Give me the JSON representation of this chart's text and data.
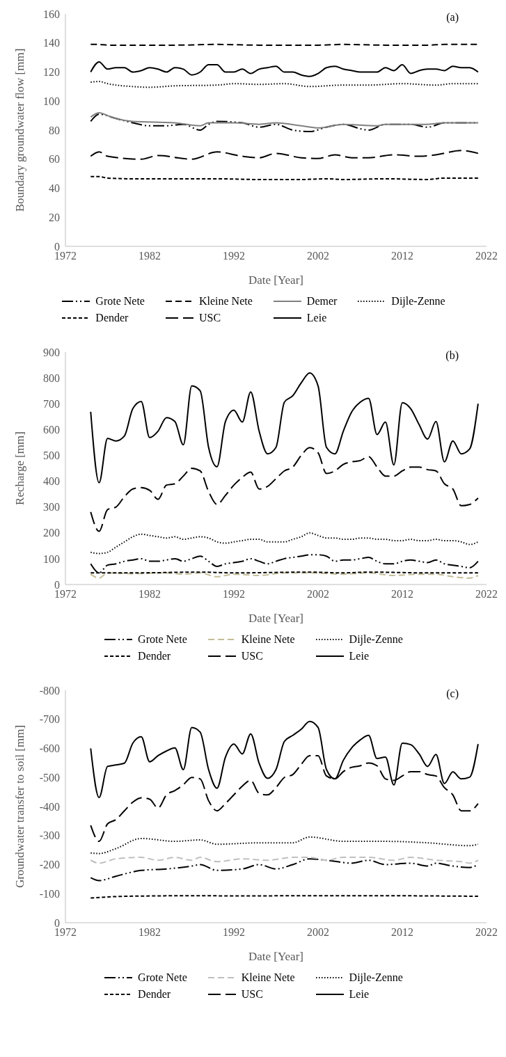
{
  "chart_data": [
    {
      "type": "line",
      "xlabel": "Date [Year]",
      "ylabel": "Boundary groundwater flow [mm]",
      "annotations": [
        "(a)"
      ],
      "legend": "bottom",
      "xlim": [
        1972,
        2022
      ],
      "xticks": [
        1972,
        1982,
        1992,
        2002,
        2012,
        2022
      ],
      "ylim": [
        0,
        160
      ],
      "yticks": [
        0,
        20,
        40,
        60,
        80,
        100,
        120,
        140,
        160
      ],
      "x": [
        1975,
        1976,
        1977,
        1978,
        1979,
        1980,
        1981,
        1982,
        1983,
        1984,
        1985,
        1986,
        1987,
        1988,
        1989,
        1990,
        1991,
        1992,
        1993,
        1994,
        1995,
        1996,
        1997,
        1998,
        1999,
        2000,
        2001,
        2002,
        2003,
        2004,
        2005,
        2006,
        2007,
        2008,
        2009,
        2010,
        2011,
        2012,
        2013,
        2014,
        2015,
        2016,
        2017,
        2018,
        2019,
        2020,
        2021
      ],
      "series": [
        {
          "name": "Grote Nete",
          "color": "#000000",
          "line_style": "dashdot",
          "x": [
            1975,
            1976,
            1978,
            1980,
            1982,
            1984,
            1986,
            1988,
            1989,
            1990,
            1993,
            1995,
            1997,
            1999,
            2001,
            2003,
            2005,
            2007,
            2008,
            2010,
            2013,
            2015,
            2017,
            2021
          ],
          "values": [
            86,
            91,
            88,
            85,
            83,
            83,
            84,
            80,
            84,
            86,
            85,
            82,
            84,
            80,
            79,
            82,
            84,
            81,
            80,
            84,
            84,
            82,
            85,
            85
          ]
        },
        {
          "name": "Kleine Nete",
          "color": "#000000",
          "line_style": "dashed",
          "x": [
            1975,
            1976,
            1977,
            1980,
            1985,
            1990,
            1995,
            2000,
            2002,
            2005,
            2010,
            2015,
            2017,
            2019,
            2021
          ],
          "values": [
            139,
            139,
            138.5,
            138.5,
            138.5,
            139,
            138.5,
            138.5,
            138.5,
            139,
            138.5,
            138.5,
            139,
            139,
            139
          ]
        },
        {
          "name": "Demer",
          "color": "#808080",
          "line_style": "solid",
          "x": [
            1975,
            1976,
            1977,
            1978,
            1980,
            1985,
            1988,
            1989,
            1992,
            1995,
            1997,
            2000,
            2002,
            2005,
            2009,
            2010,
            2015,
            2017,
            2021
          ],
          "values": [
            89,
            92,
            90,
            88,
            86,
            85,
            83,
            85,
            85,
            84,
            85,
            83,
            81.5,
            84,
            83,
            84,
            84,
            85,
            85
          ]
        },
        {
          "name": "Dijle-Zenne",
          "color": "#000000",
          "line_style": "dotted",
          "x": [
            1975,
            1976,
            1977,
            1980,
            1982,
            1985,
            1990,
            1992,
            1995,
            1998,
            2001,
            2005,
            2008,
            2012,
            2016,
            2018,
            2021
          ],
          "values": [
            113,
            113.5,
            112,
            110,
            109.5,
            110.5,
            111,
            112,
            111.5,
            112,
            110,
            111,
            111,
            112,
            111,
            112,
            112
          ]
        },
        {
          "name": "Dender",
          "color": "#000000",
          "line_style": "shortdash",
          "x": [
            1975,
            1976,
            1977,
            1980,
            1985,
            1990,
            1995,
            2000,
            2003,
            2005,
            2010,
            2015,
            2017,
            2021
          ],
          "values": [
            48,
            48,
            47,
            46.5,
            46.5,
            46.5,
            46,
            46,
            46.5,
            46,
            46.5,
            46,
            47,
            47
          ]
        },
        {
          "name": "USC",
          "color": "#000000",
          "line_style": "longdash",
          "x": [
            1975,
            1976,
            1977,
            1981,
            1983,
            1987,
            1990,
            1993,
            1995,
            1997,
            2000,
            2002,
            2004,
            2006,
            2008,
            2011,
            2014,
            2016,
            2019,
            2021
          ],
          "values": [
            62,
            65,
            62,
            60,
            62.5,
            60,
            65,
            62,
            61,
            64,
            61,
            60.5,
            63,
            61,
            61,
            63,
            62,
            63,
            66,
            64
          ]
        },
        {
          "name": "Leie",
          "color": "#000000",
          "line_style": "solid",
          "values": [
            120,
            127,
            122,
            123,
            123,
            120,
            121,
            123,
            122,
            120,
            123,
            122,
            118,
            120,
            125,
            125,
            120,
            120,
            122,
            119,
            122,
            123,
            124,
            120,
            120,
            118,
            117,
            119,
            123,
            124,
            122,
            121,
            120,
            120,
            120,
            123,
            121,
            125,
            119,
            121,
            122,
            122,
            121,
            124,
            123,
            123,
            120
          ]
        }
      ]
    },
    {
      "type": "line",
      "xlabel": "Date [Year]",
      "ylabel": "Recharge [mm]",
      "annotations": [
        "(b)"
      ],
      "legend": "bottom",
      "xlim": [
        1972,
        2022
      ],
      "xticks": [
        1972,
        1982,
        1992,
        2002,
        2012,
        2022
      ],
      "ylim": [
        0,
        900
      ],
      "yticks": [
        0,
        100,
        200,
        300,
        400,
        500,
        600,
        700,
        800,
        900
      ],
      "x": [
        1975,
        1976,
        1977,
        1978,
        1979,
        1980,
        1981,
        1982,
        1983,
        1984,
        1985,
        1986,
        1987,
        1988,
        1989,
        1990,
        1991,
        1992,
        1993,
        1994,
        1995,
        1996,
        1997,
        1998,
        1999,
        2000,
        2001,
        2002,
        2003,
        2004,
        2005,
        2006,
        2007,
        2008,
        2009,
        2010,
        2011,
        2012,
        2013,
        2014,
        2015,
        2016,
        2017,
        2018,
        2019,
        2020,
        2021
      ],
      "series": [
        {
          "name": "Grote Nete",
          "color": "#000000",
          "line_style": "dashdot",
          "values": [
            80,
            45,
            75,
            80,
            90,
            95,
            100,
            90,
            90,
            95,
            100,
            90,
            100,
            110,
            90,
            70,
            80,
            85,
            90,
            100,
            90,
            80,
            90,
            100,
            105,
            110,
            115,
            115,
            110,
            90,
            95,
            95,
            100,
            105,
            90,
            80,
            80,
            90,
            95,
            90,
            85,
            95,
            80,
            75,
            70,
            65,
            90
          ]
        },
        {
          "name": "Kleine Nete",
          "color": "#c4bd97",
          "line_style": "dashed",
          "x": [
            1975,
            1976,
            1977,
            1980,
            1984,
            1986,
            1988,
            1990,
            1992,
            1995,
            1998,
            2001,
            2005,
            2008,
            2011,
            2014,
            2016,
            2018,
            2020,
            2021
          ],
          "values": [
            40,
            25,
            45,
            42,
            45,
            40,
            45,
            30,
            40,
            35,
            45,
            45,
            40,
            45,
            35,
            40,
            40,
            30,
            25,
            35
          ]
        },
        {
          "name": "Dijle-Zenne",
          "color": "#000000",
          "line_style": "dotted",
          "values": [
            125,
            120,
            125,
            145,
            165,
            185,
            195,
            190,
            185,
            180,
            185,
            175,
            180,
            185,
            180,
            165,
            160,
            165,
            170,
            175,
            175,
            165,
            165,
            165,
            175,
            185,
            200,
            190,
            180,
            180,
            175,
            175,
            180,
            180,
            175,
            175,
            170,
            170,
            175,
            170,
            170,
            175,
            170,
            170,
            165,
            155,
            165
          ]
        },
        {
          "name": "Dender",
          "color": "#000000",
          "line_style": "shortdash",
          "x": [
            1975,
            1980,
            1988,
            1992,
            2001,
            2005,
            2008,
            2015,
            2021
          ],
          "values": [
            45,
            45,
            48,
            45,
            48,
            45,
            48,
            45,
            45
          ]
        },
        {
          "name": "USC",
          "color": "#000000",
          "line_style": "longdash",
          "values": [
            281,
            206,
            290,
            300,
            340,
            370,
            375,
            365,
            330,
            385,
            390,
            420,
            450,
            440,
            360,
            310,
            345,
            385,
            415,
            435,
            370,
            380,
            410,
            440,
            455,
            500,
            530,
            510,
            430,
            440,
            465,
            475,
            480,
            495,
            455,
            420,
            420,
            440,
            455,
            455,
            445,
            440,
            390,
            370,
            305,
            310,
            335
          ]
        },
        {
          "name": "Leie",
          "color": "#000000",
          "line_style": "solid",
          "values": [
            669,
            394,
            566,
            556,
            575,
            681,
            709,
            569,
            594,
            646,
            631,
            541,
            769,
            750,
            531,
            456,
            631,
            675,
            629,
            746,
            594,
            506,
            531,
            706,
            731,
            781,
            819,
            769,
            531,
            506,
            594,
            669,
            706,
            721,
            581,
            629,
            463,
            704,
            681,
            619,
            563,
            631,
            475,
            556,
            506,
            525,
            700
          ]
        }
      ]
    },
    {
      "type": "line",
      "xlabel": "Date [Year]",
      "ylabel": "Groundwater transfer to soil [mm]",
      "annotations": [
        "(c)"
      ],
      "legend": "bottom",
      "xlim": [
        1972,
        2022
      ],
      "xticks": [
        1972,
        1982,
        1992,
        2002,
        2012,
        2022
      ],
      "ylim": [
        0,
        -800
      ],
      "yticks": [
        0,
        -100,
        -200,
        -300,
        -400,
        -500,
        -600,
        -700,
        -800
      ],
      "x": [
        1975,
        1976,
        1977,
        1978,
        1979,
        1980,
        1981,
        1982,
        1983,
        1984,
        1985,
        1986,
        1987,
        1988,
        1989,
        1990,
        1991,
        1992,
        1993,
        1994,
        1995,
        1996,
        1997,
        1998,
        1999,
        2000,
        2001,
        2002,
        2003,
        2004,
        2005,
        2006,
        2007,
        2008,
        2009,
        2010,
        2011,
        2012,
        2013,
        2014,
        2015,
        2016,
        2017,
        2018,
        2019,
        2020,
        2021
      ],
      "series": [
        {
          "name": "Grote Nete",
          "color": "#000000",
          "line_style": "dashdot",
          "x": [
            1975,
            1976,
            1978,
            1981,
            1984,
            1987,
            1988,
            1990,
            1993,
            1995,
            1997,
            1999,
            2001,
            2003,
            2006,
            2008,
            2010,
            2013,
            2015,
            2016,
            2018,
            2020,
            2021
          ],
          "values": [
            -155,
            -145,
            -160,
            -180,
            -185,
            -195,
            -200,
            -180,
            -185,
            -200,
            -185,
            -200,
            -220,
            -215,
            -205,
            -215,
            -200,
            -205,
            -195,
            -205,
            -195,
            -190,
            -200
          ]
        },
        {
          "name": "Kleine Nete",
          "color": "#bfbfbf",
          "line_style": "dashed",
          "x": [
            1975,
            1976,
            1978,
            1981,
            1983,
            1985,
            1987,
            1988,
            1990,
            1993,
            1996,
            1999,
            2001,
            2003,
            2005,
            2008,
            2011,
            2013,
            2016,
            2019,
            2020,
            2021
          ],
          "values": [
            -215,
            -205,
            -220,
            -225,
            -215,
            -225,
            -215,
            -225,
            -210,
            -220,
            -215,
            -225,
            -225,
            -215,
            -225,
            -225,
            -215,
            -225,
            -215,
            -210,
            -205,
            -215
          ]
        },
        {
          "name": "Dijle-Zenne",
          "color": "#000000",
          "line_style": "dotted",
          "x": [
            1975,
            1976,
            1978,
            1981,
            1985,
            1988,
            1990,
            1995,
            1999,
            2001,
            2005,
            2010,
            2015,
            2020,
            2021
          ],
          "values": [
            -240,
            -238,
            -255,
            -290,
            -280,
            -285,
            -270,
            -275,
            -275,
            -295,
            -280,
            -280,
            -275,
            -265,
            -270
          ]
        },
        {
          "name": "Dender",
          "color": "#000000",
          "line_style": "shortdash",
          "x": [
            1975,
            1978,
            1982,
            1988,
            1992,
            2001,
            2010,
            2016,
            2021
          ],
          "values": [
            -85,
            -90,
            -92,
            -93,
            -92,
            -93,
            -93,
            -92,
            -91
          ]
        },
        {
          "name": "USC",
          "color": "#000000",
          "line_style": "longdash",
          "values": [
            -335,
            -280,
            -340,
            -355,
            -385,
            -415,
            -430,
            -425,
            -395,
            -440,
            -455,
            -475,
            -500,
            -495,
            -420,
            -385,
            -410,
            -440,
            -470,
            -490,
            -445,
            -440,
            -465,
            -500,
            -510,
            -545,
            -575,
            -575,
            -505,
            -495,
            -520,
            -535,
            -540,
            -550,
            -540,
            -495,
            -490,
            -505,
            -520,
            -520,
            -510,
            -505,
            -465,
            -440,
            -385,
            -385,
            -410
          ]
        },
        {
          "name": "Leie",
          "color": "#000000",
          "line_style": "solid",
          "values": [
            -600,
            -431,
            -538,
            -543,
            -549,
            -618,
            -640,
            -554,
            -575,
            -591,
            -602,
            -527,
            -672,
            -656,
            -527,
            -463,
            -570,
            -615,
            -581,
            -650,
            -549,
            -497,
            -527,
            -624,
            -645,
            -666,
            -693,
            -672,
            -527,
            -495,
            -559,
            -602,
            -629,
            -645,
            -565,
            -570,
            -474,
            -618,
            -613,
            -581,
            -538,
            -579,
            -479,
            -519,
            -495,
            -501,
            -615
          ]
        }
      ]
    }
  ]
}
